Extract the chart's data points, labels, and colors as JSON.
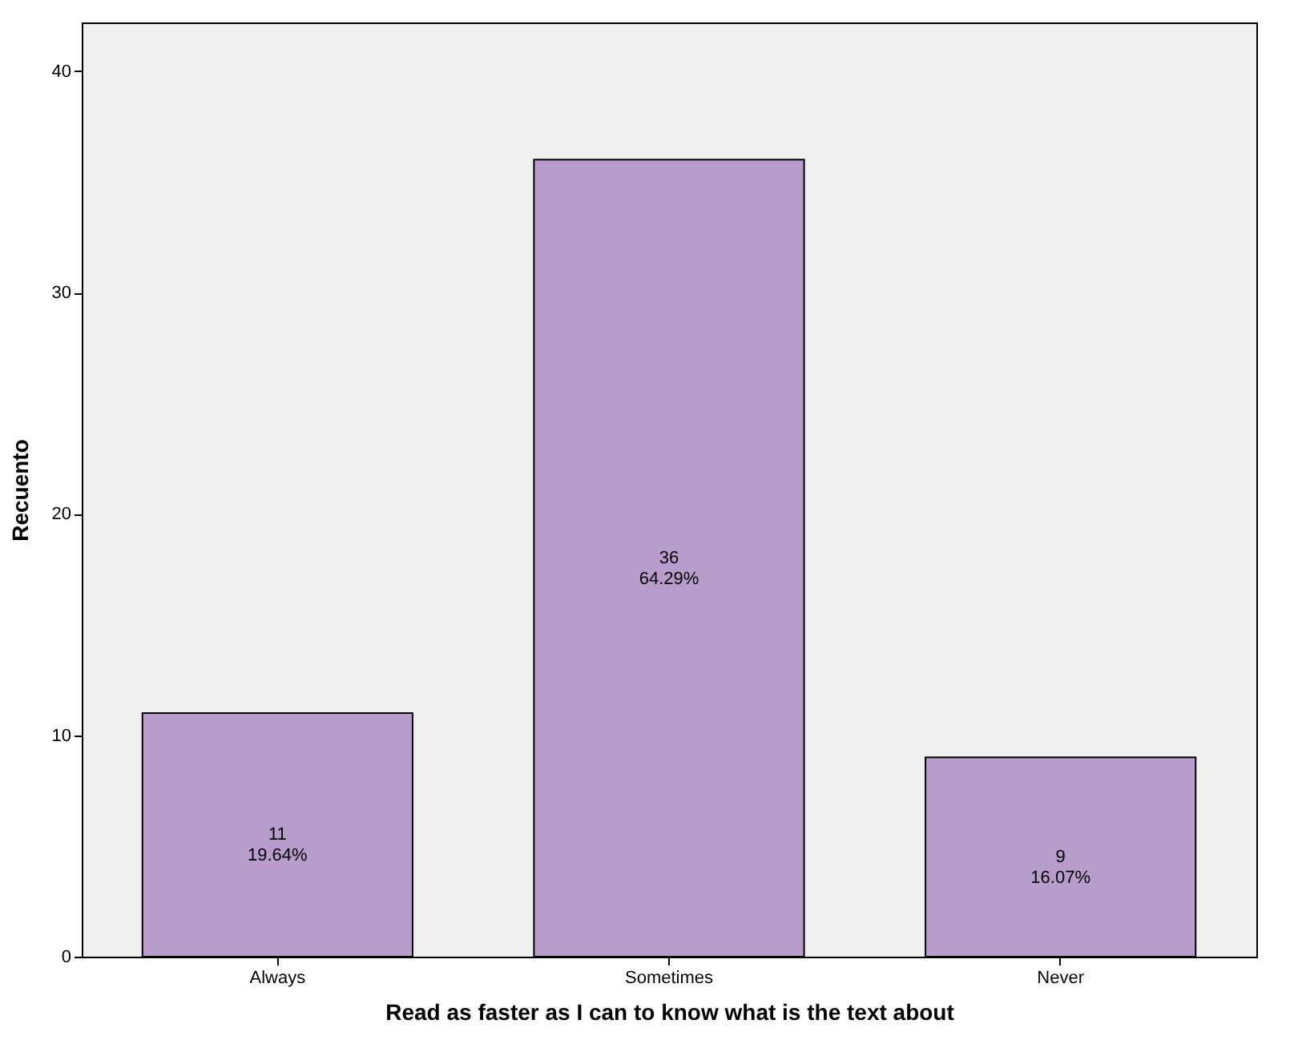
{
  "chart_data": {
    "type": "bar",
    "xlabel": "Read as faster as I can to know what is the text about",
    "ylabel": "Recuento",
    "categories": [
      "Always",
      "Sometimes",
      "Never"
    ],
    "values": [
      11,
      36,
      9
    ],
    "color": "#b89ccb",
    "value_labels": [
      "11\n19.64%",
      "36\n64.29%",
      "9\n16.07%"
    ],
    "ylim": [
      0,
      42.2
    ],
    "yticks": [
      0,
      10,
      20,
      30,
      40
    ],
    "grid": false
  }
}
